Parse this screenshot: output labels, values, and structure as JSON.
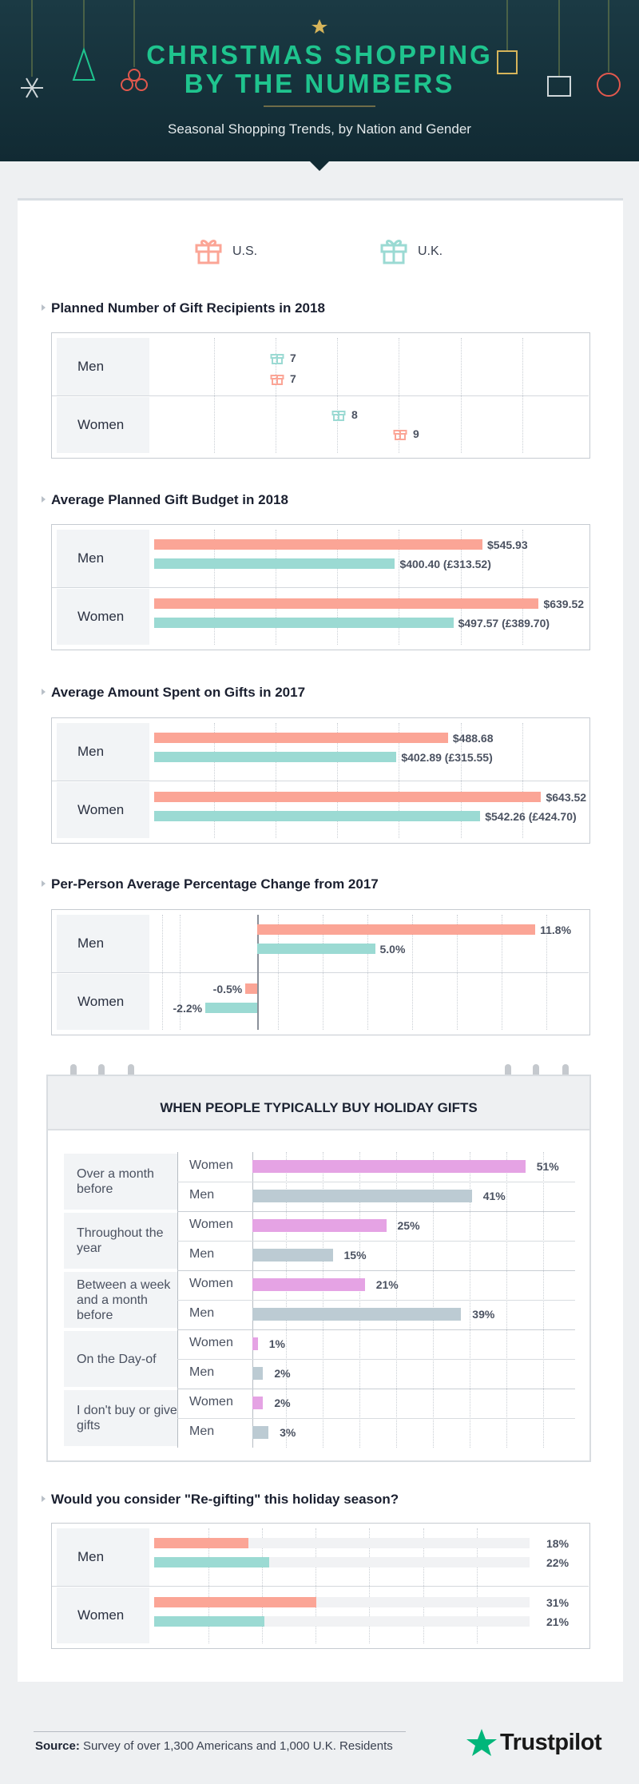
{
  "header": {
    "title_line1": "CHRISTMAS SHOPPING",
    "title_line2": "BY THE NUMBERS",
    "subtitle": "Seasonal Shopping Trends, by Nation and Gender"
  },
  "legend": {
    "us_label": "U.S.",
    "uk_label": "U.K."
  },
  "colors": {
    "us": "#fba596",
    "uk": "#9bdad3",
    "women": "#e5a3e4",
    "men": "#bccbd3",
    "brand": "#1fc48e",
    "trustpilot_star": "#00b67a"
  },
  "chart_data": [
    {
      "type": "dot",
      "title": "Planned Number of Gift Recipients in 2018",
      "categories": [
        "Men",
        "Women"
      ],
      "series": [
        {
          "name": "U.S.",
          "values": [
            7,
            9
          ]
        },
        {
          "name": "U.K.",
          "values": [
            7,
            8
          ]
        }
      ],
      "xlim": [
        5,
        11
      ],
      "value_labels": [
        [
          "7",
          "7"
        ],
        [
          "8",
          "9"
        ]
      ]
    },
    {
      "type": "bar",
      "title": "Average Planned Gift Budget in 2018",
      "categories": [
        "Men",
        "Women"
      ],
      "series": [
        {
          "name": "U.S.",
          "values": [
            545.93,
            639.52
          ],
          "labels": [
            "$545.93",
            "$639.52"
          ]
        },
        {
          "name": "U.K.",
          "values": [
            400.4,
            497.57
          ],
          "labels": [
            "$400.40 (£313.52)",
            "$497.57 (£389.70)"
          ]
        }
      ],
      "xlim": [
        0,
        700
      ]
    },
    {
      "type": "bar",
      "title": "Average Amount Spent on Gifts in 2017",
      "categories": [
        "Men",
        "Women"
      ],
      "series": [
        {
          "name": "U.S.",
          "values": [
            488.68,
            643.52
          ],
          "labels": [
            "$488.68",
            "$643.52"
          ]
        },
        {
          "name": "U.K.",
          "values": [
            402.89,
            542.26
          ],
          "labels": [
            "$402.89 (£315.55)",
            "$542.26 (£424.70)"
          ]
        }
      ],
      "xlim": [
        0,
        700
      ]
    },
    {
      "type": "bar",
      "title": "Per-Person Average Percentage Change from 2017",
      "categories": [
        "Men",
        "Women"
      ],
      "series": [
        {
          "name": "U.S.",
          "values": [
            11.8,
            -0.5
          ],
          "labels": [
            "11.8%",
            "-0.5%"
          ]
        },
        {
          "name": "U.K.",
          "values": [
            5.0,
            -2.2
          ],
          "labels": [
            "5.0%",
            "-2.2%"
          ]
        }
      ],
      "xlim": [
        -4,
        14
      ]
    },
    {
      "type": "bar",
      "title": "WHEN PEOPLE TYPICALLY BUY HOLIDAY GIFTS",
      "categories": [
        "Over a month before",
        "Throughout the year",
        "Between a week and a month before",
        "On the Day-of",
        "I don't buy or give gifts"
      ],
      "series": [
        {
          "name": "Women",
          "values": [
            51,
            25,
            21,
            1,
            2
          ],
          "labels": [
            "51%",
            "25%",
            "21%",
            "1%",
            "2%"
          ]
        },
        {
          "name": "Men",
          "values": [
            41,
            15,
            39,
            2,
            3
          ],
          "labels": [
            "41%",
            "15%",
            "39%",
            "2%",
            "3%"
          ]
        }
      ],
      "xlim": [
        0,
        60
      ]
    },
    {
      "type": "bar",
      "title": "Would you consider \"Re-gifting\" this holiday season?",
      "categories": [
        "Men",
        "Women"
      ],
      "series": [
        {
          "name": "U.S.",
          "values": [
            18,
            31
          ],
          "labels": [
            "18%",
            "31%"
          ]
        },
        {
          "name": "U.K.",
          "values": [
            22,
            21
          ],
          "labels": [
            "22%",
            "21%"
          ]
        }
      ],
      "xlim": [
        0,
        70
      ]
    }
  ],
  "footer": {
    "source_label": "Source:",
    "source_text": "Survey of over 1,300 Americans and 1,000 U.K. Residents",
    "brand": "Trustpilot"
  }
}
